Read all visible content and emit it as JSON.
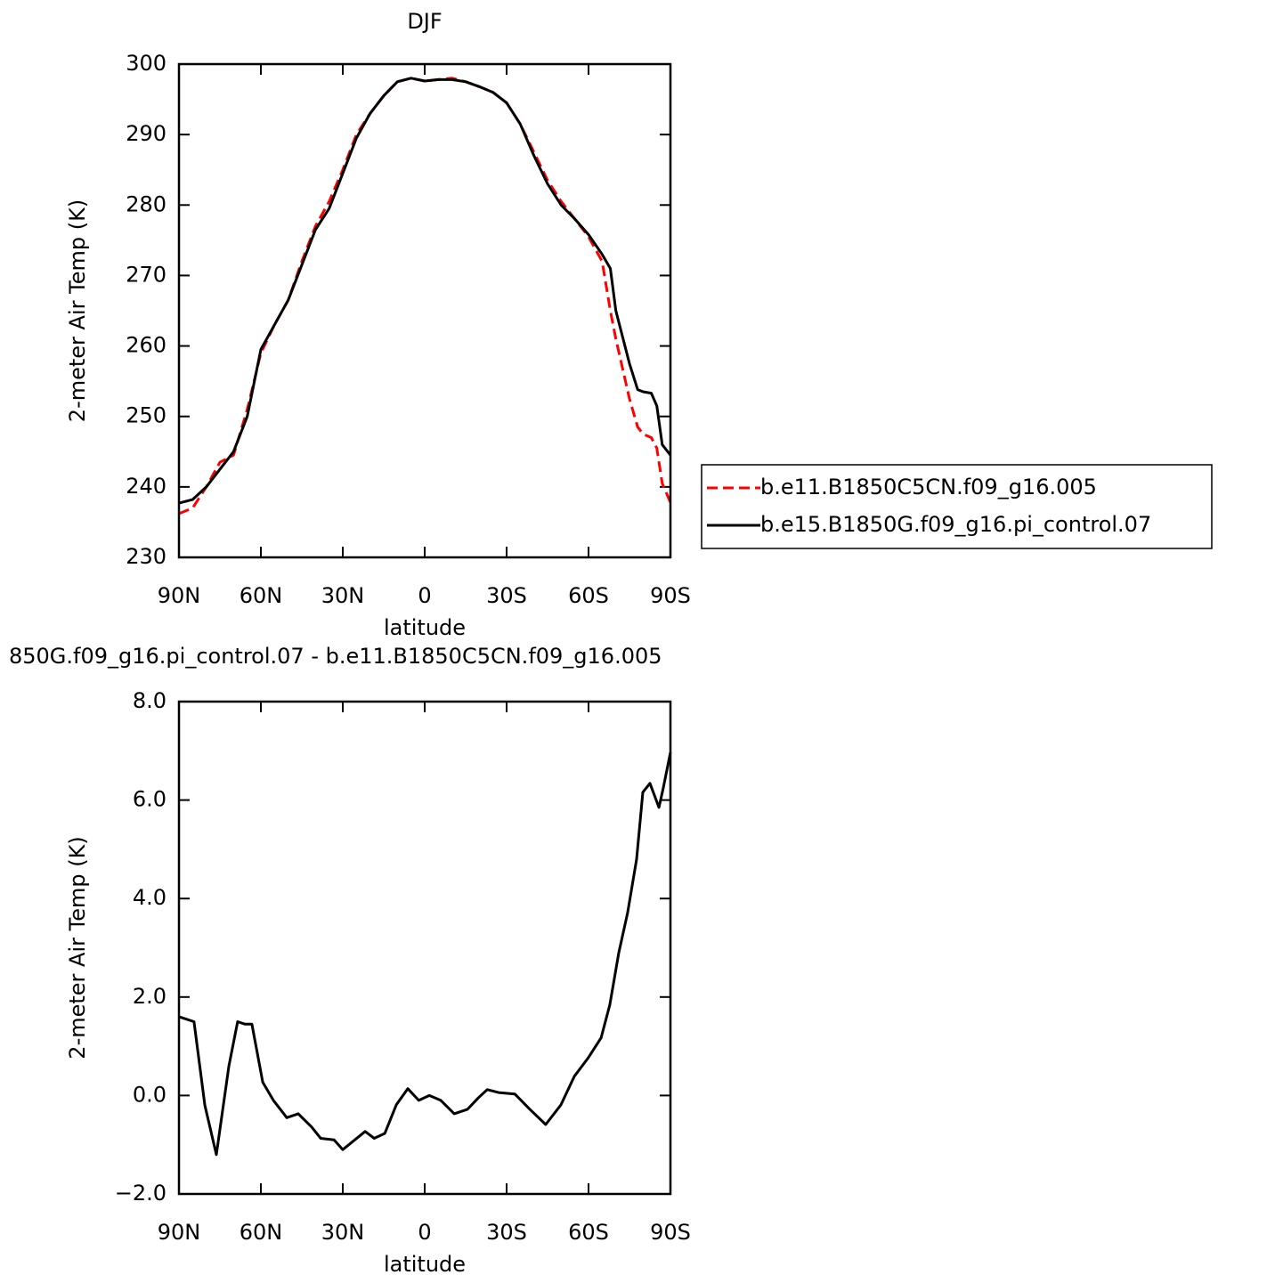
{
  "chart_data": [
    {
      "type": "line",
      "title": "DJF",
      "xlabel": "latitude",
      "ylabel": "2-meter Air Temp (K)",
      "xlim": [
        90,
        -90
      ],
      "xticks": [
        {
          "value": 90,
          "label": "90N"
        },
        {
          "value": 60,
          "label": "60N"
        },
        {
          "value": 30,
          "label": "30N"
        },
        0,
        {
          "value": -30,
          "label": "30S"
        },
        {
          "value": -60,
          "label": "60S"
        },
        {
          "value": -90,
          "label": "90S"
        }
      ],
      "ylim": [
        230,
        300
      ],
      "yticks": [
        230,
        240,
        250,
        260,
        270,
        280,
        290,
        300
      ],
      "legend": "right",
      "x": [
        90,
        85,
        80,
        75,
        70,
        65,
        60,
        55,
        50,
        45,
        40,
        35,
        30,
        25,
        20,
        15,
        10,
        5,
        0,
        -5,
        -10,
        -15,
        -20,
        -25,
        -30,
        -35,
        -40,
        -45,
        -50,
        -55,
        -60,
        -65,
        -68,
        -70,
        -75,
        -78,
        -80,
        -83,
        -85,
        -87,
        -90
      ],
      "series": [
        {
          "name": "b.e11.B1850C5CN.f09_g16.005",
          "color": "#ff0000",
          "dash": true,
          "values": [
            236.2,
            237,
            240,
            243.5,
            244.5,
            251,
            259,
            263,
            266.5,
            272,
            277,
            280.5,
            285,
            290,
            293,
            295.5,
            297.5,
            298,
            297.6,
            297.8,
            298,
            297.5,
            296.8,
            296,
            294.5,
            291.5,
            287.5,
            283.5,
            280.5,
            278,
            275.5,
            272,
            265,
            261,
            252.5,
            248.5,
            247.5,
            247,
            245.5,
            240.5,
            237.8
          ]
        },
        {
          "name": "b.e15.B1850G.f09_g16.pi_control.07",
          "color": "#000000",
          "dash": false,
          "values": [
            237.7,
            238.2,
            240,
            242.5,
            245,
            250,
            259.5,
            263,
            266.5,
            271.5,
            276.5,
            279.5,
            284.5,
            289.5,
            293,
            295.5,
            297.5,
            298,
            297.6,
            297.8,
            297.8,
            297.5,
            296.8,
            296,
            294.5,
            291.5,
            287,
            283,
            280,
            278,
            275.8,
            273,
            271,
            265,
            257.5,
            253.8,
            253.5,
            253.3,
            251.5,
            246,
            244.5
          ]
        }
      ]
    },
    {
      "type": "line",
      "title": "850G.f09_g16.pi_control.07 - b.e11.B1850C5CN.f09_g16.005",
      "xlabel": "latitude",
      "ylabel": "2-meter Air Temp (K)",
      "xlim": [
        90,
        -90
      ],
      "xticks": [
        {
          "value": 90,
          "label": "90N"
        },
        {
          "value": 60,
          "label": "60N"
        },
        {
          "value": 30,
          "label": "30N"
        },
        0,
        {
          "value": -30,
          "label": "30S"
        },
        {
          "value": -60,
          "label": "60S"
        },
        {
          "value": -90,
          "label": "90S"
        }
      ],
      "ylim": [
        -2,
        8
      ],
      "yticks": [
        {
          "value": -2,
          "label": "−2.0"
        },
        {
          "value": 0,
          "label": "0.0"
        },
        {
          "value": 2,
          "label": "2.0"
        },
        {
          "value": 4,
          "label": "4.0"
        },
        {
          "value": 6,
          "label": "6.0"
        },
        {
          "value": 8,
          "label": "8.0"
        }
      ],
      "x": [
        90,
        84.5,
        80.5,
        76.3,
        71.7,
        68.5,
        65.9,
        63.3,
        59.3,
        55.4,
        50.5,
        46.3,
        41.4,
        38.1,
        33.2,
        30,
        21.8,
        18.5,
        14.6,
        10.4,
        6.2,
        2.2,
        -1.7,
        -5.9,
        -10.8,
        -15.7,
        -19.6,
        -22.9,
        -27.1,
        -33,
        -38.5,
        -44.3,
        -49.9,
        -54.8,
        -59.7,
        -64.6,
        -67.8,
        -71.1,
        -74.3,
        -77.6,
        -79.9,
        -82.5,
        -85.8,
        -87.4,
        -90
      ],
      "series": [
        {
          "color": "#000000",
          "dash": false,
          "values": [
            1.6,
            1.5,
            -0.2,
            -1.2,
            0.6,
            1.5,
            1.45,
            1.45,
            0.27,
            -0.1,
            -0.45,
            -0.37,
            -0.64,
            -0.87,
            -0.9,
            -1.1,
            -0.73,
            -0.87,
            -0.77,
            -0.19,
            0.14,
            -0.1,
            0,
            -0.1,
            -0.37,
            -0.28,
            -0.05,
            0.12,
            0.06,
            0.03,
            -0.28,
            -0.59,
            -0.19,
            0.39,
            0.75,
            1.17,
            1.84,
            2.9,
            3.71,
            4.8,
            6.16,
            6.34,
            5.85,
            6.25,
            6.97
          ]
        }
      ]
    }
  ]
}
